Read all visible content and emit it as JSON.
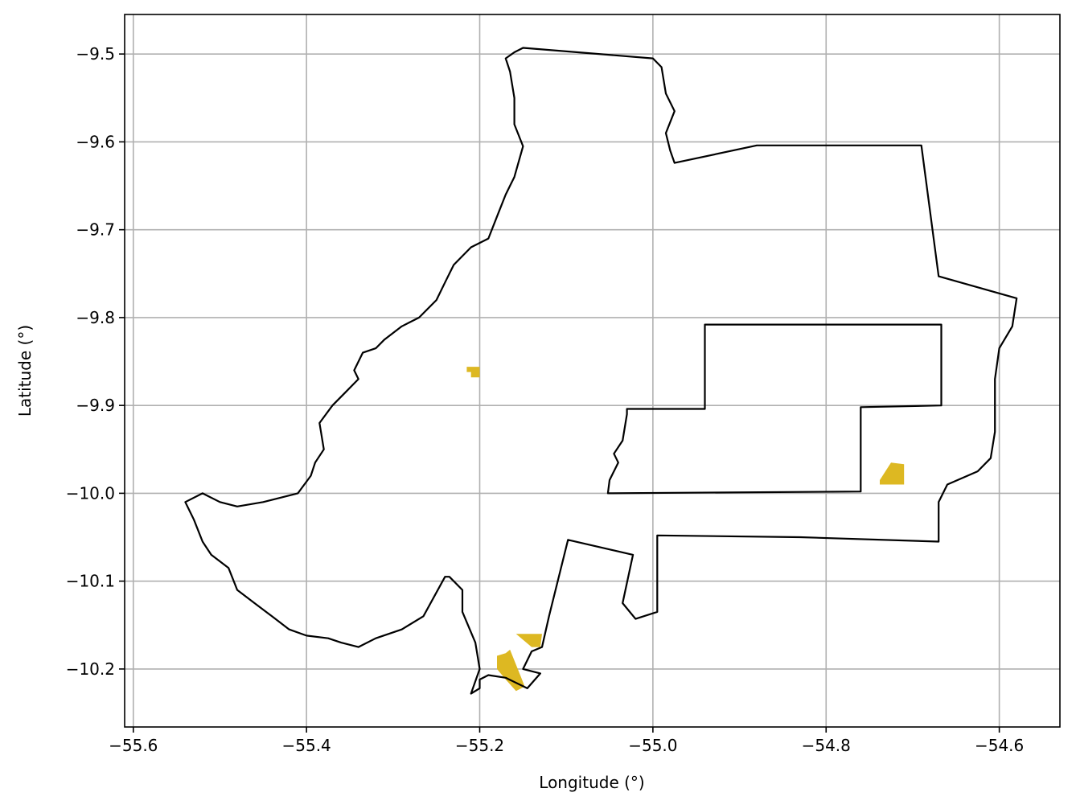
{
  "chart_data": {
    "type": "map",
    "xlabel": "Longitude (°)",
    "ylabel": "Latitude (°)",
    "xlim": [
      -55.61,
      -54.53
    ],
    "ylim": [
      -10.266,
      -9.455
    ],
    "x_ticks": [
      -55.6,
      -55.4,
      -55.2,
      -55.0,
      -54.8,
      -54.6
    ],
    "x_tick_labels": [
      "−55.6",
      "−55.4",
      "−55.2",
      "−55.0",
      "−54.8",
      "−54.6"
    ],
    "y_ticks": [
      -9.5,
      -9.6,
      -9.7,
      -9.8,
      -9.9,
      -10.0,
      -10.1,
      -10.2
    ],
    "y_tick_labels": [
      "−9.5",
      "−9.6",
      "−9.7",
      "−9.8",
      "−9.9",
      "−10.0",
      "−10.1",
      "−10.2"
    ],
    "grid": true,
    "colors": {
      "boundary": "#000000",
      "highlight": "#DDB822",
      "grid": "#b0b0b0"
    },
    "boundary_outer": [
      [
        -55.15,
        -9.493
      ],
      [
        -55.0,
        -9.505
      ],
      [
        -54.99,
        -9.515
      ],
      [
        -54.985,
        -9.545
      ],
      [
        -54.975,
        -9.565
      ],
      [
        -54.985,
        -9.59
      ],
      [
        -54.98,
        -9.61
      ],
      [
        -54.975,
        -9.624
      ],
      [
        -54.88,
        -9.604
      ],
      [
        -54.69,
        -9.604
      ],
      [
        -54.67,
        -9.753
      ],
      [
        -54.58,
        -9.778
      ],
      [
        -54.585,
        -9.81
      ],
      [
        -54.6,
        -9.835
      ],
      [
        -54.605,
        -9.87
      ],
      [
        -54.605,
        -9.93
      ],
      [
        -54.61,
        -9.96
      ],
      [
        -54.625,
        -9.975
      ],
      [
        -54.66,
        -9.99
      ],
      [
        -54.67,
        -10.01
      ],
      [
        -54.67,
        -10.055
      ],
      [
        -54.83,
        -10.05
      ],
      [
        -54.995,
        -10.048
      ],
      [
        -54.995,
        -10.135
      ],
      [
        -55.02,
        -10.143
      ],
      [
        -55.035,
        -10.125
      ],
      [
        -55.023,
        -10.07
      ],
      [
        -55.098,
        -10.053
      ],
      [
        -55.12,
        -10.14
      ],
      [
        -55.128,
        -10.175
      ],
      [
        -55.14,
        -10.18
      ],
      [
        -55.15,
        -10.2
      ],
      [
        -55.13,
        -10.205
      ],
      [
        -55.145,
        -10.222
      ],
      [
        -55.17,
        -10.21
      ],
      [
        -55.19,
        -10.207
      ],
      [
        -55.2,
        -10.212
      ],
      [
        -55.2,
        -10.222
      ],
      [
        -55.21,
        -10.228
      ],
      [
        -55.2,
        -10.2
      ],
      [
        -55.205,
        -10.17
      ],
      [
        -55.22,
        -10.135
      ],
      [
        -55.22,
        -10.11
      ],
      [
        -55.235,
        -10.095
      ],
      [
        -55.24,
        -10.095
      ],
      [
        -55.265,
        -10.14
      ],
      [
        -55.29,
        -10.155
      ],
      [
        -55.32,
        -10.165
      ],
      [
        -55.34,
        -10.175
      ],
      [
        -55.36,
        -10.17
      ],
      [
        -55.375,
        -10.165
      ],
      [
        -55.4,
        -10.162
      ],
      [
        -55.42,
        -10.155
      ],
      [
        -55.44,
        -10.14
      ],
      [
        -55.46,
        -10.125
      ],
      [
        -55.48,
        -10.11
      ],
      [
        -55.49,
        -10.085
      ],
      [
        -55.51,
        -10.07
      ],
      [
        -55.52,
        -10.055
      ],
      [
        -55.53,
        -10.03
      ],
      [
        -55.54,
        -10.01
      ],
      [
        -55.52,
        -10.0
      ],
      [
        -55.5,
        -10.01
      ],
      [
        -55.48,
        -10.015
      ],
      [
        -55.45,
        -10.01
      ],
      [
        -55.41,
        -10.0
      ],
      [
        -55.395,
        -9.98
      ],
      [
        -55.39,
        -9.965
      ],
      [
        -55.38,
        -9.95
      ],
      [
        -55.385,
        -9.92
      ],
      [
        -55.37,
        -9.9
      ],
      [
        -55.355,
        -9.885
      ],
      [
        -55.34,
        -9.87
      ],
      [
        -55.345,
        -9.86
      ],
      [
        -55.335,
        -9.84
      ],
      [
        -55.32,
        -9.835
      ],
      [
        -55.31,
        -9.825
      ],
      [
        -55.29,
        -9.81
      ],
      [
        -55.27,
        -9.8
      ],
      [
        -55.25,
        -9.78
      ],
      [
        -55.24,
        -9.76
      ],
      [
        -55.23,
        -9.74
      ],
      [
        -55.21,
        -9.72
      ],
      [
        -55.19,
        -9.71
      ],
      [
        -55.18,
        -9.685
      ],
      [
        -55.17,
        -9.66
      ],
      [
        -55.16,
        -9.64
      ],
      [
        -55.15,
        -9.605
      ],
      [
        -55.16,
        -9.58
      ],
      [
        -55.16,
        -9.55
      ],
      [
        -55.165,
        -9.52
      ],
      [
        -55.17,
        -9.505
      ],
      [
        -55.16,
        -9.498
      ]
    ],
    "boundary_inner": [
      [
        -54.94,
        -9.808
      ],
      [
        -54.667,
        -9.808
      ],
      [
        -54.667,
        -9.9
      ],
      [
        -54.76,
        -9.902
      ],
      [
        -54.76,
        -9.998
      ],
      [
        -55.052,
        -10.0
      ],
      [
        -55.05,
        -9.985
      ],
      [
        -55.04,
        -9.965
      ],
      [
        -55.045,
        -9.955
      ],
      [
        -55.035,
        -9.94
      ],
      [
        -55.03,
        -9.91
      ],
      [
        -55.03,
        -9.904
      ],
      [
        -54.94,
        -9.904
      ]
    ],
    "highlight_regions": [
      [
        [
          -55.215,
          -9.856
        ],
        [
          -55.2,
          -9.856
        ],
        [
          -55.2,
          -9.868
        ],
        [
          -55.21,
          -9.868
        ],
        [
          -55.21,
          -9.862
        ],
        [
          -55.215,
          -9.862
        ]
      ],
      [
        [
          -54.725,
          -9.965
        ],
        [
          -54.71,
          -9.967
        ],
        [
          -54.71,
          -9.99
        ],
        [
          -54.738,
          -9.99
        ],
        [
          -54.738,
          -9.985
        ]
      ],
      [
        [
          -55.158,
          -10.16
        ],
        [
          -55.128,
          -10.16
        ],
        [
          -55.13,
          -10.175
        ],
        [
          -55.14,
          -10.175
        ]
      ],
      [
        [
          -55.18,
          -10.185
        ],
        [
          -55.17,
          -10.182
        ],
        [
          -55.165,
          -10.178
        ],
        [
          -55.152,
          -10.21
        ],
        [
          -55.148,
          -10.22
        ],
        [
          -55.158,
          -10.225
        ],
        [
          -55.17,
          -10.212
        ],
        [
          -55.18,
          -10.2
        ]
      ]
    ]
  }
}
